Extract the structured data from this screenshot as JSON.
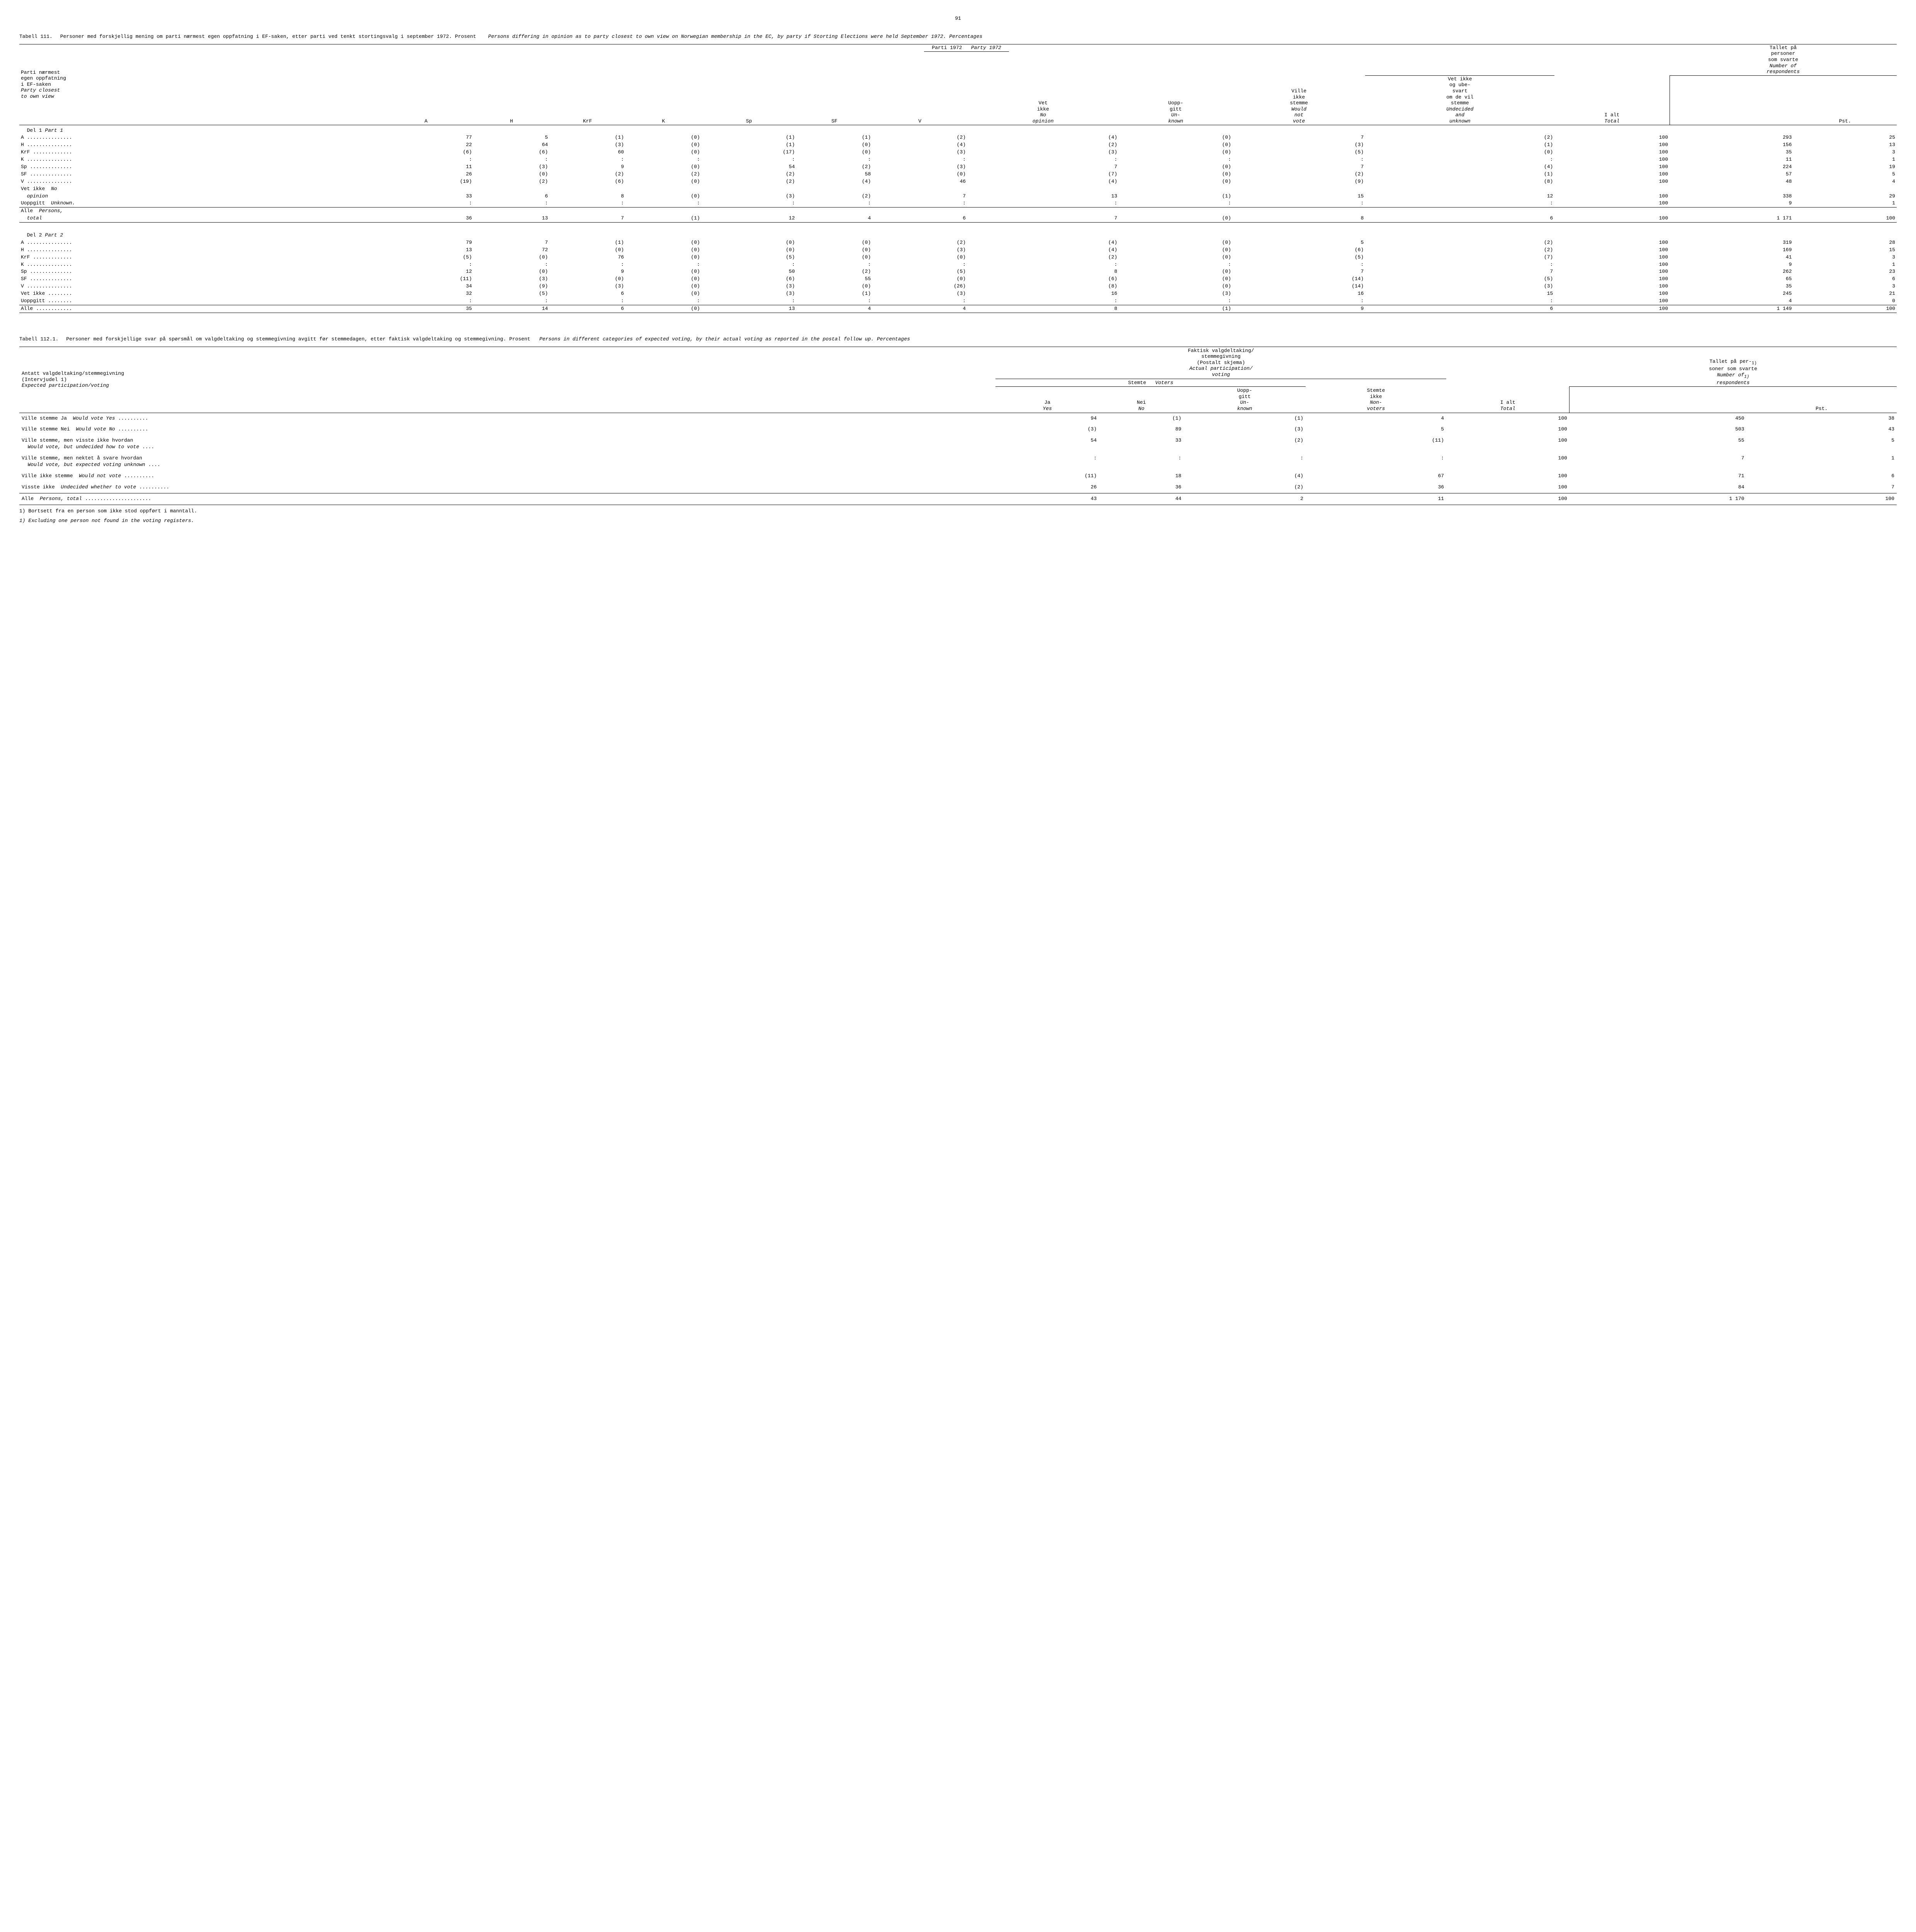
{
  "page_number": "91",
  "table111": {
    "label": "Tabell 111.",
    "caption_no": "Personer med forskjellig mening om parti nærmest egen oppfatning i EF-saken, etter parti ved tenkt stortingsvalg i september 1972.  Prosent",
    "caption_en": "Persons differing in opinion as to party closest to own view on Norwegian membership in the EC, by party if Storting Elections were held September 1972.   Percentages",
    "stub_no": [
      "Parti nærmest",
      "egen oppfatning",
      "i EF-saken"
    ],
    "stub_en": [
      "Party closest",
      "to own view"
    ],
    "span_header_no": "Parti 1972",
    "span_header_en": "Party 1972",
    "cols": [
      "A",
      "H",
      "KrF",
      "K",
      "Sp",
      "SF",
      "V"
    ],
    "col_vetikke_no": [
      "Vet",
      "ikke"
    ],
    "col_vetikke_en": [
      "No",
      "opinion"
    ],
    "col_uopp_no": [
      "Uopp-",
      "gitt"
    ],
    "col_uopp_en": [
      "Un-",
      "known"
    ],
    "col_ville_no": [
      "Ville",
      "ikke",
      "stemme"
    ],
    "col_ville_en": [
      "Would",
      "not",
      "vote"
    ],
    "col_undec_no": [
      "Vet ikke",
      "og ube-",
      "svart",
      "om de vil",
      "stemme"
    ],
    "col_undec_en": [
      "Undecided",
      "and",
      "unknown"
    ],
    "col_ialt_no": "I alt",
    "col_ialt_en": "Total",
    "col_tallet_no": [
      "Tallet på",
      "personer",
      "som svarte"
    ],
    "col_tallet_en": [
      "Number of",
      "respondents"
    ],
    "col_pst": "Pst.",
    "part1_label": "Del 1  Part 1",
    "part2_label": "Del 2  Part 2",
    "rows_p1": [
      {
        "label": "A",
        "cells": [
          "77",
          "5",
          "(1)",
          "(0)",
          "(1)",
          "(1)",
          "(2)",
          "(4)",
          "(0)",
          "7",
          "(2)",
          "100",
          "293",
          "25"
        ]
      },
      {
        "label": "H",
        "cells": [
          "22",
          "64",
          "(3)",
          "(0)",
          "(1)",
          "(0)",
          "(4)",
          "(2)",
          "(0)",
          "(3)",
          "(1)",
          "100",
          "156",
          "13"
        ]
      },
      {
        "label": "KrF",
        "cells": [
          "(6)",
          "(6)",
          "60",
          "(0)",
          "(17)",
          "(0)",
          "(3)",
          "(3)",
          "(0)",
          "(5)",
          "(0)",
          "100",
          "35",
          "3"
        ]
      },
      {
        "label": "K",
        "cells": [
          ":",
          ":",
          ":",
          ":",
          ":",
          ":",
          ":",
          ":",
          ":",
          ":",
          ":",
          "100",
          "11",
          "1"
        ]
      },
      {
        "label": "Sp",
        "cells": [
          "11",
          "(3)",
          "9",
          "(0)",
          "54",
          "(2)",
          "(3)",
          "7",
          "(0)",
          "7",
          "(4)",
          "100",
          "224",
          "19"
        ]
      },
      {
        "label": "SF",
        "cells": [
          "26",
          "(0)",
          "(2)",
          "(2)",
          "(2)",
          "58",
          "(0)",
          "(7)",
          "(0)",
          "(2)",
          "(1)",
          "100",
          "57",
          "5"
        ]
      },
      {
        "label": "V",
        "cells": [
          "(19)",
          "(2)",
          "(6)",
          "(0)",
          "(2)",
          "(4)",
          "46",
          "(4)",
          "(0)",
          "(9)",
          "(8)",
          "100",
          "48",
          "4"
        ]
      }
    ],
    "vetikke_label_no": "Vet ikke",
    "vetikke_label_en": "No",
    "opinion_label": "opinion",
    "opinion_cells": [
      "33",
      "6",
      "8",
      "(0)",
      "(3)",
      "(2)",
      "7",
      "13",
      "(1)",
      "15",
      "12",
      "100",
      "338",
      "29"
    ],
    "uoppgitt_label": "Uoppgitt",
    "unknown_label": "Unknown.",
    "uoppgitt_cells": [
      ":",
      ":",
      ":",
      ":",
      ":",
      ":",
      ":",
      ":",
      ":",
      ":",
      ":",
      "100",
      "9",
      "1"
    ],
    "alle_persons_no": "Alle",
    "alle_persons_en": "Persons,",
    "total_label": "total",
    "total_cells_p1": [
      "36",
      "13",
      "7",
      "(1)",
      "12",
      "4",
      "6",
      "7",
      "(0)",
      "8",
      "6",
      "100",
      "1 171",
      "100"
    ],
    "rows_p2": [
      {
        "label": "A",
        "cells": [
          "79",
          "7",
          "(1)",
          "(0)",
          "(0)",
          "(0)",
          "(2)",
          "(4)",
          "(0)",
          "5",
          "(2)",
          "100",
          "319",
          "28"
        ]
      },
      {
        "label": "H",
        "cells": [
          "13",
          "72",
          "(0)",
          "(0)",
          "(0)",
          "(0)",
          "(3)",
          "(4)",
          "(0)",
          "(6)",
          "(2)",
          "100",
          "169",
          "15"
        ]
      },
      {
        "label": "KrF",
        "cells": [
          "(5)",
          "(0)",
          "76",
          "(0)",
          "(5)",
          "(0)",
          "(0)",
          "(2)",
          "(0)",
          "(5)",
          "(7)",
          "100",
          "41",
          "3"
        ]
      },
      {
        "label": "K",
        "cells": [
          ":",
          ":",
          ":",
          ":",
          ":",
          ":",
          ":",
          ":",
          ":",
          ":",
          ":",
          "100",
          "9",
          "1"
        ]
      },
      {
        "label": "Sp",
        "cells": [
          "12",
          "(0)",
          "9",
          "(0)",
          "50",
          "(2)",
          "(5)",
          "8",
          "(0)",
          "7",
          "7",
          "100",
          "262",
          "23"
        ]
      },
      {
        "label": "SF",
        "cells": [
          "(11)",
          "(3)",
          "(0)",
          "(0)",
          "(6)",
          "55",
          "(0)",
          "(6)",
          "(0)",
          "(14)",
          "(5)",
          "100",
          "65",
          "6"
        ]
      },
      {
        "label": "V",
        "cells": [
          "34",
          "(9)",
          "(3)",
          "(0)",
          "(3)",
          "(0)",
          "(26)",
          "(8)",
          "(0)",
          "(14)",
          "(3)",
          "100",
          "35",
          "3"
        ]
      },
      {
        "label": "Vet ikke",
        "cells": [
          "32",
          "(5)",
          "6",
          "(0)",
          "(3)",
          "(1)",
          "(3)",
          "16",
          "(3)",
          "16",
          "15",
          "100",
          "245",
          "21"
        ]
      },
      {
        "label": "Uoppgitt",
        "cells": [
          ":",
          ":",
          ":",
          ":",
          ":",
          ":",
          ":",
          ":",
          ":",
          ":",
          ":",
          "100",
          "4",
          "0"
        ]
      }
    ],
    "alle_label": "Alle",
    "alle_cells_p2": [
      "35",
      "14",
      "6",
      "(0)",
      "13",
      "4",
      "4",
      "8",
      "(1)",
      "9",
      "6",
      "100",
      "1 149",
      "100"
    ]
  },
  "table112": {
    "label": "Tabell 112.1.",
    "caption_no": "Personer med forskjellige svar på spørsmål om valgdeltaking og stemmegivning avgitt før stemmedagen, etter faktisk valgdeltaking og stemmegivning. Prosent",
    "caption_en": "Persons in different categories of expected voting, by their actual voting as reported in the postal follow up.   Percentages",
    "stub_no": "Antatt valgdeltaking/stemmegivning",
    "stub_sub": "(Intervjudel 1)",
    "stub_en": "Expected participation/voting",
    "span_no": [
      "Faktisk valgdeltaking/",
      "stemmegivning",
      "(Postalt skjema)"
    ],
    "span_en": [
      "Actual participation/",
      "voting"
    ],
    "stemte_no": "Stemte",
    "stemte_en": "Voters",
    "ja_no": "Ja",
    "ja_en": "Yes",
    "nei_no": "Nei",
    "nei_en": "No",
    "uopp_no": [
      "Uopp-",
      "gitt"
    ],
    "uopp_en": [
      "Un-",
      "known"
    ],
    "stemteikke_no": [
      "Stemte",
      "ikke"
    ],
    "stemteikke_en": [
      "Non-",
      "voters"
    ],
    "ialt_no": "I alt",
    "ialt_en": "Total",
    "tallet_no": [
      "Tallet på per-",
      "soner som svarte"
    ],
    "tallet_en": [
      "Number of",
      "respondents"
    ],
    "sup": "1)",
    "pst": "Pst.",
    "rows": [
      {
        "label_no": "Ville stemme Ja",
        "label_en": "Would vote Yes",
        "cells": [
          "94",
          "(1)",
          "(1)",
          "4",
          "100",
          "450",
          "38"
        ]
      },
      {
        "label_no": "Ville stemme Nei",
        "label_en": "Would vote No",
        "cells": [
          "(3)",
          "89",
          "(3)",
          "5",
          "100",
          "503",
          "43"
        ]
      },
      {
        "label_no": "Ville stemme, men visste ikke hvordan",
        "label_en": "Would vote, but undecided how to vote",
        "cells": [
          "54",
          "33",
          "(2)",
          "(11)",
          "100",
          "55",
          "5"
        ]
      },
      {
        "label_no": "Ville stemme, men nektet å svare hvordan",
        "label_en": "Would vote, but expected voting unknown",
        "cells": [
          ":",
          ":",
          ":",
          ":",
          "100",
          "7",
          "1"
        ]
      },
      {
        "label_no": "Ville ikke stemme",
        "label_en": "Would not vote",
        "cells": [
          "(11)",
          "18",
          "(4)",
          "67",
          "100",
          "71",
          "6"
        ]
      },
      {
        "label_no": "Visste ikke",
        "label_en": "Undecided whether to vote",
        "cells": [
          "26",
          "36",
          "(2)",
          "36",
          "100",
          "84",
          "7"
        ]
      }
    ],
    "total_no": "Alle",
    "total_en": "Persons, total",
    "total_cells": [
      "43",
      "44",
      "2",
      "11",
      "100",
      "1 170",
      "100"
    ],
    "footnote_no": "1) Bortsett fra en person som ikke stod oppført i manntall.",
    "footnote_en": "1) Excluding one person not found in the voting registers."
  }
}
